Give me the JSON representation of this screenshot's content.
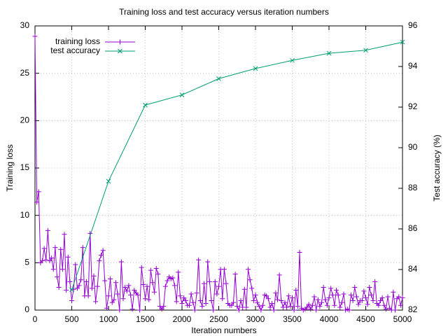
{
  "chart_data": {
    "type": "line",
    "title": "Training loss and test accuracy versus iteration numbers",
    "xlabel": "Iteration numbers",
    "ylabel": "Training loss",
    "y2label": "Test accuracy (%)",
    "xlim": [
      0,
      5000
    ],
    "xticks": [
      0,
      500,
      1000,
      1500,
      2000,
      2500,
      3000,
      3500,
      4000,
      4500,
      5000
    ],
    "ylim": [
      0,
      30
    ],
    "yticks": [
      0,
      5,
      10,
      15,
      20,
      25,
      30
    ],
    "y2lim": [
      82,
      96
    ],
    "y2ticks": [
      82,
      84,
      86,
      88,
      90,
      92,
      94,
      96
    ],
    "grid": true,
    "legend": "top-left",
    "series": [
      {
        "name": "training loss",
        "color": "#9400d3",
        "marker": "plus",
        "x": [
          0,
          25,
          50,
          75,
          100,
          125,
          150,
          175,
          200,
          225,
          250,
          275,
          300,
          325,
          350,
          375,
          400,
          425,
          450,
          475,
          500,
          525,
          550,
          575,
          600,
          625,
          650,
          675,
          700,
          725,
          750,
          775,
          800,
          825,
          850,
          875,
          900,
          925,
          950,
          975,
          1000,
          1025,
          1050,
          1075,
          1100,
          1125,
          1150,
          1175,
          1200,
          1225,
          1250,
          1275,
          1300,
          1325,
          1350,
          1375,
          1400,
          1425,
          1450,
          1475,
          1500,
          1525,
          1550,
          1575,
          1600,
          1625,
          1650,
          1675,
          1700,
          1725,
          1750,
          1775,
          1800,
          1825,
          1850,
          1875,
          1900,
          1925,
          1950,
          1975,
          2000,
          2025,
          2050,
          2075,
          2100,
          2125,
          2150,
          2175,
          2200,
          2225,
          2250,
          2275,
          2300,
          2325,
          2350,
          2375,
          2400,
          2425,
          2450,
          2475,
          2500,
          2525,
          2550,
          2575,
          2600,
          2625,
          2650,
          2675,
          2700,
          2725,
          2750,
          2775,
          2800,
          2825,
          2850,
          2875,
          2900,
          2925,
          2950,
          2975,
          3000,
          3025,
          3050,
          3075,
          3100,
          3125,
          3150,
          3175,
          3200,
          3225,
          3250,
          3275,
          3300,
          3325,
          3350,
          3375,
          3400,
          3425,
          3450,
          3475,
          3500,
          3525,
          3550,
          3575,
          3600,
          3625,
          3650,
          3675,
          3700,
          3725,
          3750,
          3775,
          3800,
          3825,
          3850,
          3875,
          3900,
          3925,
          3950,
          3975,
          4000,
          4025,
          4050,
          4075,
          4100,
          4125,
          4150,
          4175,
          4200,
          4225,
          4250,
          4275,
          4300,
          4325,
          4350,
          4375,
          4400,
          4425,
          4450,
          4475,
          4500,
          4525,
          4550,
          4575,
          4600,
          4625,
          4650,
          4675,
          4700,
          4725,
          4750,
          4775,
          4800,
          4825,
          4850,
          4875,
          4900,
          4925,
          4950,
          4975,
          5000
        ],
        "values": [
          28.9,
          11.4,
          12.5,
          5.0,
          5.2,
          6.5,
          5.3,
          8.4,
          5.2,
          5.5,
          4.3,
          6.6,
          3.5,
          2.4,
          6.4,
          4.3,
          8.0,
          2.1,
          5.6,
          3.0,
          1.0,
          2.2,
          4.8,
          2.3,
          2.6,
          3.2,
          6.6,
          1.5,
          3.0,
          1.5,
          8.1,
          2.3,
          3.6,
          0.9,
          2.5,
          5.2,
          5.8,
          6.3,
          3.1,
          0.2,
          1.5,
          3.3,
          0.8,
          1.1,
          2.9,
          1.7,
          0.0,
          5.1,
          1.2,
          2.4,
          2.0,
          2.6,
          1.6,
          0.1,
          2.1,
          1.8,
          1.6,
          0.0,
          4.5,
          2.7,
          1.2,
          2.5,
          1.1,
          4.2,
          2.9,
          1.9,
          4.4,
          3.8,
          0.4,
          0.1,
          0.4,
          2.5,
          3.1,
          3.5,
          3.3,
          3.4,
          2.6,
          0.9,
          4.0,
          1.5,
          0.7,
          1.3,
          1.0,
          0.5,
          0.5,
          1.7,
          0.8,
          0.0,
          1.8,
          5.3,
          1.0,
          0.4,
          2.8,
          0.7,
          5.1,
          3.0,
          1.0,
          0.0,
          3.0,
          1.7,
          2.5,
          4.3,
          1.2,
          4.3,
          2.8,
          0.7,
          0.5,
          0.5,
          0.8,
          3.8,
          0.4,
          0.0,
          1.0,
          0.3,
          2.2,
          0.3,
          4.3,
          3.2,
          2.3,
          1.0,
          1.6,
          0.8,
          0.4,
          0.0,
          0.5,
          1.6,
          1.5,
          1.2,
          0.3,
          0.7,
          0.0,
          1.8,
          1.1,
          3.7,
          1.0,
          0.3,
          0.8,
          0.3,
          1.5,
          0.4,
          1.3,
          0.0,
          2.1,
          0.4,
          6.1,
          0.2,
          0.0,
          0.1,
          0.3,
          0.6,
          0.1,
          0.5,
          1.4,
          0.0,
          1.1,
          0.4,
          0.8,
          2.4,
          1.1,
          0.5,
          1.3,
          2.3,
          1.6,
          0.5,
          2.1,
          1.6,
          0.3,
          0.8,
          1.7,
          0.0,
          0.1,
          0.0,
          1.6,
          1.0,
          2.4,
          1.4,
          0.6,
          1.0,
          1.0,
          2.0,
          1.3,
          0.6,
          2.4,
          1.6,
          1.0,
          3.0,
          0.7,
          0.5,
          1.0,
          1.3,
          0.5,
          0.1,
          1.4,
          0.2,
          0.0,
          1.9,
          0.0,
          1.2,
          1.4,
          0.5,
          1.3
        ]
      },
      {
        "name": "test accuracy",
        "color": "#009e73",
        "marker": "cross",
        "axis": "y2",
        "x": [
          500,
          1000,
          1500,
          2000,
          2500,
          3000,
          3500,
          4000,
          4500,
          5000
        ],
        "values": [
          83.0,
          88.35,
          92.1,
          92.6,
          93.4,
          93.9,
          94.3,
          94.65,
          94.8,
          95.2
        ]
      }
    ]
  }
}
